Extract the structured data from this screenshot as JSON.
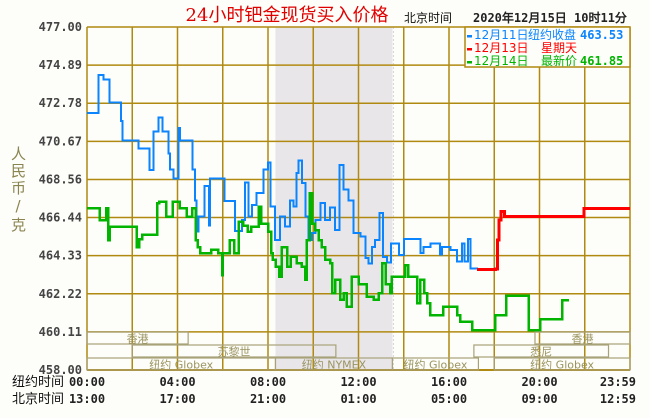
{
  "chart_data": {
    "type": "line",
    "title": "24小时钯金现货买入价格",
    "header_time_label": "北京时间",
    "header_time": "2020年12月15日 10时11分",
    "ylabel": "人民币/克",
    "ylim": [
      458.0,
      477.0
    ],
    "yticks": [
      "477.00",
      "474.89",
      "472.78",
      "470.67",
      "468.56",
      "466.44",
      "464.33",
      "462.22",
      "460.11",
      "458.00"
    ],
    "xlim_hours": [
      0,
      24
    ],
    "grid": true,
    "x_rows": [
      {
        "label": "纽约时间",
        "ticks": [
          "00:00",
          "04:00",
          "08:00",
          "12:00",
          "16:00",
          "20:00",
          "23:59"
        ]
      },
      {
        "label": "北京时间",
        "ticks": [
          "13:00",
          "17:00",
          "21:00",
          "01:00",
          "05:00",
          "09:00",
          "12:59"
        ]
      }
    ],
    "legend": [
      {
        "series": "12月11日",
        "label": "纽约收盘",
        "value": "463.53",
        "color": "#0a84ff"
      },
      {
        "series": "12月13日",
        "label": "星期天",
        "value": "",
        "color": "#ff0000"
      },
      {
        "series": "12月14日",
        "label": "最新价",
        "value": "461.85",
        "color": "#00b400"
      }
    ],
    "session_rows": [
      [
        {
          "name": "香港",
          "start": 0,
          "end": 4.47
        },
        {
          "name": "香港",
          "start": 19.8,
          "end": 24
        }
      ],
      [
        {
          "name": "苏黎世",
          "start": 2.0,
          "end": 11.0
        },
        {
          "name": "悉尼",
          "start": 17.1,
          "end": 23.05
        }
      ],
      [
        {
          "name": "纽约 Globex",
          "start": 0,
          "end": 8.33
        },
        {
          "name": "纽约 NYMEX",
          "start": 8.33,
          "end": 13.5,
          "highlight": true
        },
        {
          "name": "纽约 Globex",
          "start": 13.5,
          "end": 17.3
        },
        {
          "name": "纽约 Globex",
          "start": 18.0,
          "end": 24
        }
      ]
    ],
    "series": [
      {
        "name": "12月11日",
        "color": "#0a84ff",
        "points": [
          [
            0,
            472.24
          ],
          [
            0.5,
            474.34
          ],
          [
            0.72,
            474.1
          ],
          [
            0.99,
            472.83
          ],
          [
            1.5,
            471.8
          ],
          [
            1.56,
            470.72
          ],
          [
            2.27,
            470.28
          ],
          [
            2.76,
            469.08
          ],
          [
            2.93,
            471.2
          ],
          [
            3.15,
            472.0
          ],
          [
            3.33,
            471.2
          ],
          [
            3.6,
            470.0
          ],
          [
            3.67,
            469.1
          ],
          [
            3.82,
            468.6
          ],
          [
            4.04,
            471.4
          ],
          [
            4.11,
            470.72
          ],
          [
            4.66,
            469.1
          ],
          [
            4.78,
            467.4
          ],
          [
            4.85,
            465.66
          ],
          [
            4.92,
            466.5
          ],
          [
            5.19,
            468.2
          ],
          [
            5.4,
            466.0
          ],
          [
            5.44,
            468.6
          ],
          [
            6.08,
            467.35
          ],
          [
            6.55,
            465.7
          ],
          [
            6.85,
            466.3
          ],
          [
            6.99,
            468.4
          ],
          [
            7.14,
            466.5
          ],
          [
            7.29,
            467.14
          ],
          [
            7.5,
            467.8
          ],
          [
            7.8,
            469.1
          ],
          [
            8.0,
            469.5
          ],
          [
            8.1,
            467.05
          ],
          [
            8.32,
            465.2
          ],
          [
            8.54,
            466.5
          ],
          [
            8.76,
            465.94
          ],
          [
            8.98,
            467.4
          ],
          [
            9.13,
            467.05
          ],
          [
            9.25,
            468.9
          ],
          [
            9.35,
            469.6
          ],
          [
            9.5,
            468.35
          ],
          [
            9.65,
            466.5
          ],
          [
            9.8,
            465.2
          ],
          [
            9.94,
            465.6
          ],
          [
            10.09,
            466.3
          ],
          [
            10.31,
            467.25
          ],
          [
            10.53,
            466.3
          ],
          [
            10.75,
            467.0
          ],
          [
            10.97,
            465.75
          ],
          [
            11.16,
            469.35
          ],
          [
            11.34,
            468.0
          ],
          [
            11.56,
            467.4
          ],
          [
            11.78,
            465.6
          ],
          [
            12.08,
            465.4
          ],
          [
            12.3,
            464.2
          ],
          [
            12.45,
            463.9
          ],
          [
            12.6,
            464.8
          ],
          [
            12.74,
            465.2
          ],
          [
            12.93,
            466.7
          ],
          [
            13.08,
            464.27
          ],
          [
            13.26,
            463.96
          ],
          [
            13.44,
            465.0
          ],
          [
            13.78,
            464.37
          ],
          [
            14.0,
            465.25
          ],
          [
            14.73,
            464.48
          ],
          [
            14.87,
            464.8
          ],
          [
            15.18,
            465.0
          ],
          [
            15.6,
            464.4
          ],
          [
            15.68,
            464.8
          ],
          [
            16.06,
            464.65
          ],
          [
            16.36,
            464.0
          ],
          [
            16.58,
            465.0
          ],
          [
            16.68,
            464.0
          ],
          [
            16.84,
            465.25
          ],
          [
            16.95,
            463.63
          ],
          [
            17.24,
            463.57
          ]
        ]
      },
      {
        "name": "12月13日",
        "color": "#ff0000",
        "points": [
          [
            17.24,
            463.57
          ],
          [
            18.05,
            463.6
          ],
          [
            18.15,
            465.2
          ],
          [
            18.2,
            466.3
          ],
          [
            18.3,
            466.77
          ],
          [
            18.45,
            466.5
          ],
          [
            21.96,
            466.95
          ],
          [
            24,
            466.95
          ]
        ]
      },
      {
        "name": "12月14日",
        "color": "#00b400",
        "points": [
          [
            0,
            466.95
          ],
          [
            0.57,
            466.3
          ],
          [
            0.86,
            466.95
          ],
          [
            0.94,
            465.2
          ],
          [
            1.0,
            465.94
          ],
          [
            2.2,
            464.8
          ],
          [
            2.3,
            465.25
          ],
          [
            2.45,
            465.48
          ],
          [
            3.1,
            467.25
          ],
          [
            3.2,
            467.32
          ],
          [
            3.5,
            466.5
          ],
          [
            3.8,
            467.32
          ],
          [
            4.1,
            466.95
          ],
          [
            4.4,
            466.5
          ],
          [
            4.66,
            466.95
          ],
          [
            4.8,
            465.2
          ],
          [
            4.9,
            464.8
          ],
          [
            5.0,
            464.46
          ],
          [
            5.5,
            464.65
          ],
          [
            5.8,
            464.46
          ],
          [
            5.97,
            463.26
          ],
          [
            6.0,
            464.46
          ],
          [
            6.3,
            465.2
          ],
          [
            6.5,
            464.46
          ],
          [
            6.7,
            466.2
          ],
          [
            6.9,
            466.0
          ],
          [
            7.1,
            465.66
          ],
          [
            7.25,
            465.94
          ],
          [
            7.6,
            467.05
          ],
          [
            7.7,
            466.1
          ],
          [
            8.0,
            465.66
          ],
          [
            8.15,
            464.46
          ],
          [
            8.2,
            464.1
          ],
          [
            8.35,
            463.72
          ],
          [
            8.5,
            463.17
          ],
          [
            8.6,
            464.8
          ],
          [
            8.63,
            464.8
          ],
          [
            8.84,
            463.72
          ],
          [
            9.0,
            464.27
          ],
          [
            9.28,
            463.9
          ],
          [
            9.5,
            463.72
          ],
          [
            9.65,
            463.0
          ],
          [
            9.72,
            465.2
          ],
          [
            9.84,
            467.8
          ],
          [
            9.96,
            466.1
          ],
          [
            10.09,
            465.75
          ],
          [
            10.24,
            465.2
          ],
          [
            10.38,
            464.8
          ],
          [
            10.53,
            464.1
          ],
          [
            10.75,
            463.9
          ],
          [
            10.83,
            462.25
          ],
          [
            10.97,
            463.0
          ],
          [
            11.2,
            461.9
          ],
          [
            11.34,
            462.25
          ],
          [
            11.49,
            461.5
          ],
          [
            11.7,
            463.17
          ],
          [
            12.0,
            462.76
          ],
          [
            12.37,
            462.06
          ],
          [
            12.67,
            461.9
          ],
          [
            12.9,
            462.25
          ],
          [
            13.04,
            463.9
          ],
          [
            13.2,
            462.76
          ],
          [
            13.4,
            462.25
          ],
          [
            13.48,
            463.17
          ],
          [
            14.07,
            463.8
          ],
          [
            14.2,
            463.17
          ],
          [
            14.6,
            461.7
          ],
          [
            14.73,
            463.0
          ],
          [
            14.9,
            462.25
          ],
          [
            15.03,
            461.7
          ],
          [
            15.18,
            461.04
          ],
          [
            15.75,
            461.5
          ],
          [
            16.36,
            461.04
          ],
          [
            16.5,
            460.67
          ],
          [
            17.02,
            460.2
          ],
          [
            18.05,
            461.04
          ],
          [
            18.54,
            462.1
          ],
          [
            19.53,
            460.2
          ],
          [
            20.04,
            460.82
          ],
          [
            21.0,
            461.87
          ],
          [
            21.3,
            461.87
          ]
        ]
      }
    ]
  }
}
